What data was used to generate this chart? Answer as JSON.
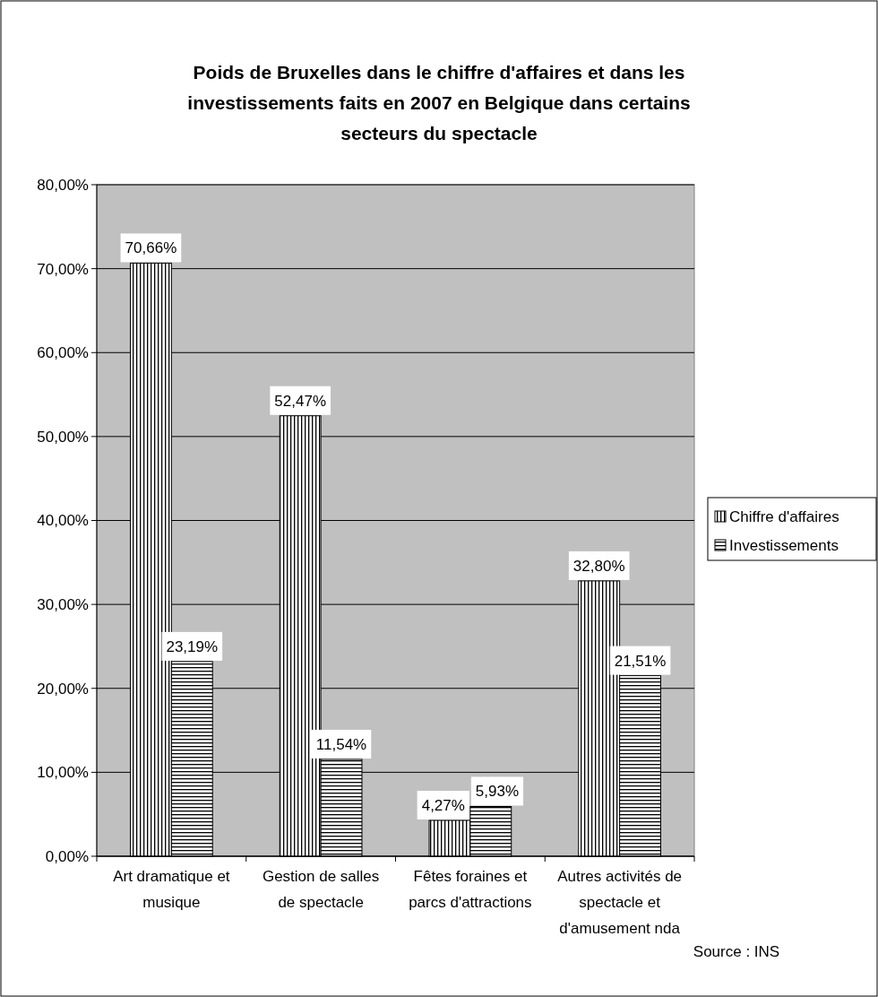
{
  "chart_data": {
    "type": "bar",
    "title": "Poids de Bruxelles dans le chiffre d'affaires et dans les investissements faits en 2007 en Belgique dans certains secteurs du spectacle",
    "categories": [
      "Art dramatique et musique",
      "Gestion de salles de spectacle",
      "Fêtes foraines et parcs d'attractions",
      "Autres activités de spectacle et d'amusement nda"
    ],
    "series": [
      {
        "name": "Chiffre d'affaires",
        "color": "#000000",
        "values": [
          70.66,
          52.47,
          4.27,
          32.8
        ],
        "value_labels": [
          "70,66%",
          "52,47%",
          "4,27%",
          "32,80%"
        ]
      },
      {
        "name": "Investissements",
        "color": "#000000",
        "values": [
          23.19,
          11.54,
          5.93,
          21.51
        ],
        "value_labels": [
          "23,19%",
          "11,54%",
          "5,93%",
          "21,51%"
        ]
      }
    ],
    "ylim": [
      0,
      80
    ],
    "yticks": [
      {
        "value": 0,
        "label": "0,00%"
      },
      {
        "value": 10,
        "label": "10,00%"
      },
      {
        "value": 20,
        "label": "20,00%"
      },
      {
        "value": 30,
        "label": "30,00%"
      },
      {
        "value": 40,
        "label": "40,00%"
      },
      {
        "value": 50,
        "label": "50,00%"
      },
      {
        "value": 60,
        "label": "60,00%"
      },
      {
        "value": 70,
        "label": "70,00%"
      },
      {
        "value": 80,
        "label": "80,00%"
      }
    ],
    "grid": "y",
    "legend": "right",
    "annotations": [
      "Source : INS"
    ]
  }
}
